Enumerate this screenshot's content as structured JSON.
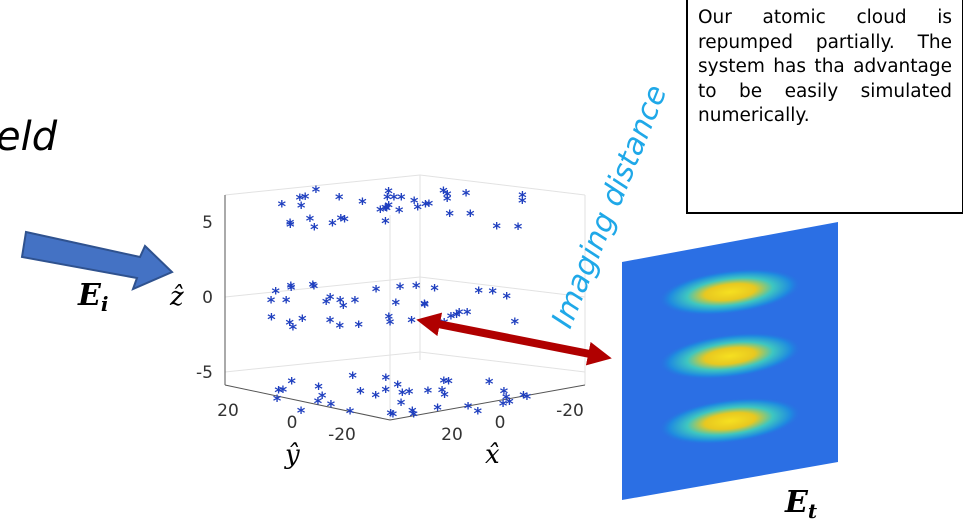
{
  "heading_fragment": "eld",
  "note": "Our atomic cloud is repumped partially. The system has tha advantage to be easily simulated numerically.",
  "labels": {
    "incident": "E",
    "incident_sub": "i",
    "transmitted": "E",
    "transmitted_sub": "t",
    "imaging": "Imaging distance"
  },
  "plot": {
    "z_label": "ẑ",
    "y_label": "ŷ",
    "x_label": "x̂",
    "z_ticks": [
      "5",
      "0",
      "-5"
    ],
    "y_ticks": [
      "20",
      "0",
      "-20"
    ],
    "x_ticks": [
      "20",
      "0",
      "-20"
    ]
  }
}
